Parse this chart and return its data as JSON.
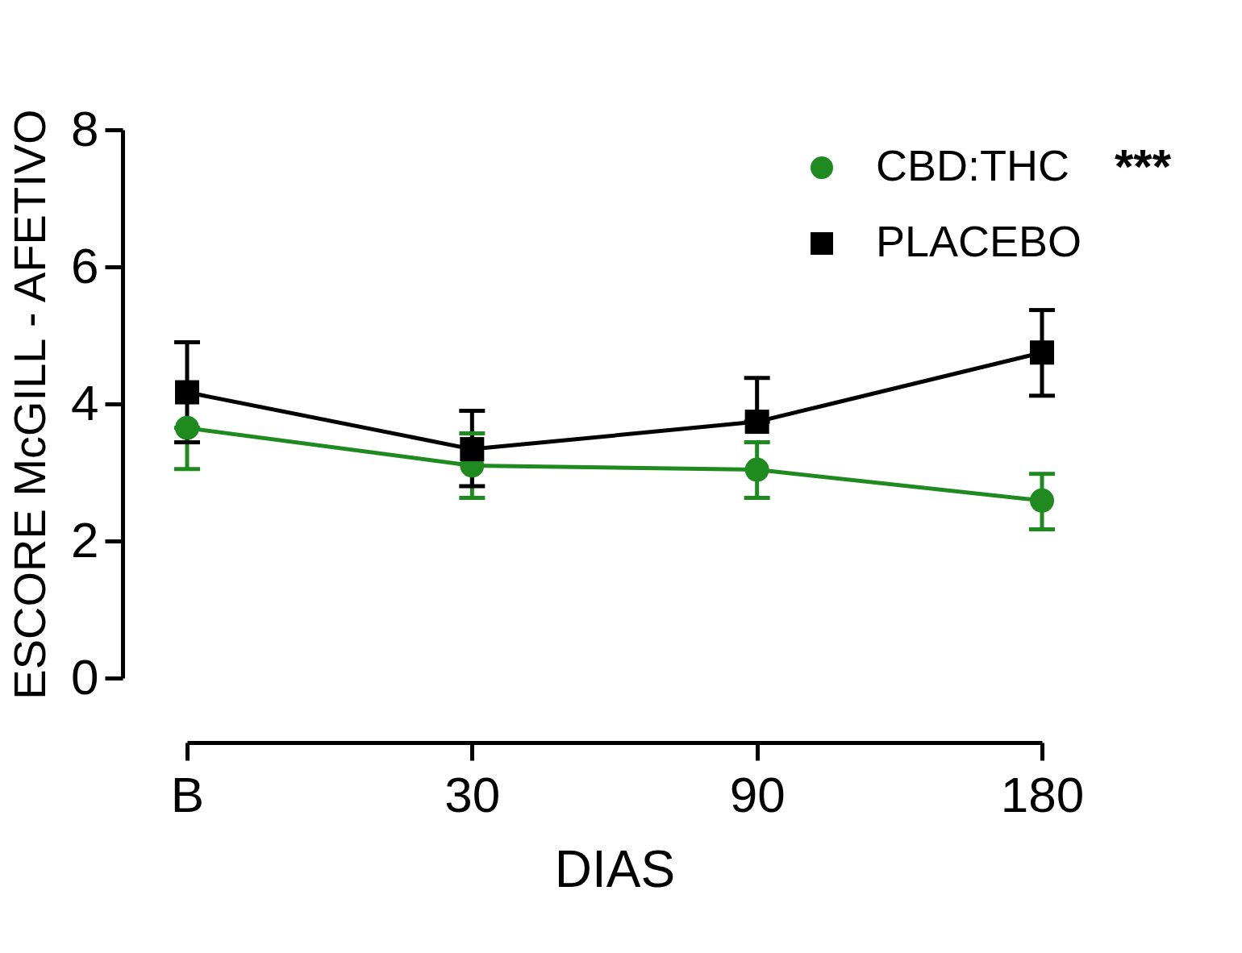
{
  "chart_data": {
    "type": "line",
    "xlabel": "DIAS",
    "ylabel": "ESCORE McGILL - AFETIVO",
    "categories": [
      "B",
      "30",
      "90",
      "180"
    ],
    "ylim": [
      0,
      8
    ],
    "yticks": [
      0,
      2,
      4,
      6,
      8
    ],
    "legend": "top right",
    "grid": false,
    "annotations": [
      "***"
    ],
    "series": [
      {
        "name": "CBD:THC",
        "color": "#1f8a1f",
        "marker": "circle",
        "values": [
          3.65,
          3.1,
          3.04,
          2.59
        ],
        "errors": [
          [
            3.05,
            3.65
          ],
          [
            2.63,
            3.57
          ],
          [
            2.63,
            3.44
          ],
          [
            2.17,
            2.98
          ]
        ]
      },
      {
        "name": "PLACEBO",
        "color": "#000000",
        "marker": "square",
        "values": [
          4.17,
          3.34,
          3.74,
          4.75
        ],
        "errors": [
          [
            3.44,
            4.9
          ],
          [
            2.8,
            3.9
          ],
          [
            3.74,
            4.38
          ],
          [
            4.12,
            5.37
          ]
        ]
      }
    ]
  }
}
